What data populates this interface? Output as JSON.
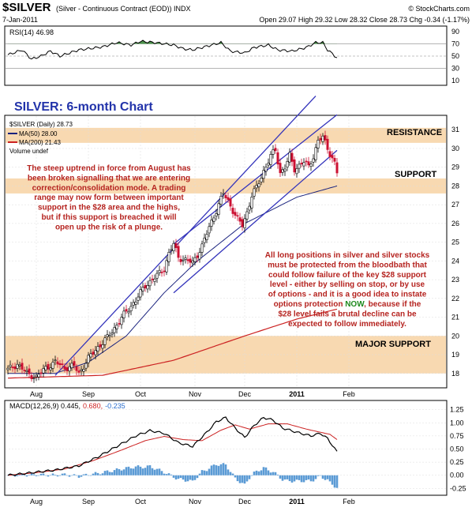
{
  "header": {
    "title": "$SILVER",
    "subtitle": "(Silver - Continuous Contract (EOD)) INDX",
    "brand": "© StockCharts.com",
    "date": "7-Jan-2011",
    "quote": "Open 29.07  High 29.32  Low 28.32  Close 28.73  Chg -0.34 (-1.17%)"
  },
  "rsi": {
    "label": "RSI(14) 46.98",
    "ticks": [
      "90",
      "70",
      "50",
      "30",
      "10"
    ]
  },
  "price": {
    "chart_title": "SILVER: 6-month Chart",
    "legend_main": "$SILVER (Daily) 28.73",
    "legend_ma50": "MA(50) 28.00",
    "legend_ma200": "MA(200) 21.43",
    "legend_vol": "Volume undef",
    "ticks": [
      "31",
      "30",
      "29",
      "28",
      "27",
      "26",
      "25",
      "24",
      "23",
      "22",
      "21",
      "20",
      "19",
      "18"
    ],
    "resistance_label": "RESISTANCE",
    "support_label": "SUPPORT",
    "major_support_label": "MAJOR SUPPORT",
    "note1": [
      "The steep uptrend in force from August has",
      "been broken signalling that we are entering",
      "correction/consolidation mode. A trading",
      "range may now form between important",
      "support in the $28 area and the highs,",
      "but if this support is breached it will",
      "open up the risk of a plunge."
    ],
    "note2_lines": [
      "All long positions in silver and silver stocks",
      "must be protected from the bloodbath that",
      "could follow failure of the key $28 support",
      "level - either by selling on stop, or by use",
      "of options - and it is a good idea to instate"
    ],
    "note2_pre": "options protection ",
    "note2_now": "NOW",
    "note2_post": ", because if the",
    "note2_tail": [
      "$28 level fails a brutal decline can be",
      "expected to follow immediately."
    ]
  },
  "months": [
    "Aug",
    "Sep",
    "Oct",
    "Nov",
    "Dec",
    "2011",
    "Feb"
  ],
  "macd": {
    "label_a": "MACD(12,26,9) 0.445,",
    "label_b": "0.680,",
    "label_c": "-0.235",
    "ticks": [
      "1.25",
      "1.00",
      "0.75",
      "0.50",
      "0.25",
      "0.00",
      "-0.25"
    ]
  },
  "colors": {
    "green_fill": "#3a8a3a",
    "ma50": "#1a237e",
    "ma200": "#cc2222",
    "channel": "#3333bb",
    "zone": "#f7d2a3",
    "up_candle": "#000000",
    "down_candle": "#cc1133",
    "hist": "#5b9bd5"
  },
  "chart_data": {
    "type": "candlestick",
    "title": "SILVER: 6-month Chart",
    "ylim": [
      17.4,
      31.6
    ],
    "rsi_ylim": [
      5,
      95
    ],
    "macd_ylim": [
      -0.35,
      1.35
    ],
    "n_days": 160,
    "month_ticks": [
      {
        "label": "Aug",
        "day": 12
      },
      {
        "label": "Sep",
        "day": 34
      },
      {
        "label": "Oct",
        "day": 56
      },
      {
        "label": "Nov",
        "day": 79
      },
      {
        "label": "Dec",
        "day": 100
      },
      {
        "label": "2011",
        "day": 122
      },
      {
        "label": "Feb",
        "day": 144
      }
    ],
    "close_anchors": [
      [
        0,
        18.2
      ],
      [
        4,
        18.5
      ],
      [
        8,
        18.0
      ],
      [
        12,
        17.8
      ],
      [
        16,
        18.3
      ],
      [
        20,
        18.6
      ],
      [
        24,
        18.3
      ],
      [
        28,
        18.4
      ],
      [
        30,
        18.0
      ],
      [
        34,
        18.8
      ],
      [
        38,
        19.4
      ],
      [
        42,
        19.9
      ],
      [
        46,
        20.6
      ],
      [
        50,
        21.3
      ],
      [
        54,
        21.9
      ],
      [
        58,
        22.7
      ],
      [
        62,
        23.1
      ],
      [
        66,
        23.6
      ],
      [
        68,
        24.4
      ],
      [
        70,
        24.9
      ],
      [
        72,
        24.2
      ],
      [
        76,
        24.0
      ],
      [
        78,
        23.9
      ],
      [
        82,
        24.8
      ],
      [
        85,
        25.8
      ],
      [
        88,
        26.7
      ],
      [
        91,
        27.6
      ],
      [
        93,
        27.2
      ],
      [
        95,
        26.7
      ],
      [
        97,
        26.2
      ],
      [
        99,
        25.9
      ],
      [
        101,
        26.6
      ],
      [
        103,
        27.5
      ],
      [
        105,
        27.9
      ],
      [
        108,
        28.8
      ],
      [
        111,
        29.6
      ],
      [
        113,
        29.9
      ],
      [
        115,
        28.7
      ],
      [
        117,
        29.0
      ],
      [
        119,
        29.6
      ],
      [
        121,
        28.9
      ],
      [
        123,
        29.1
      ],
      [
        125,
        29.3
      ],
      [
        127,
        29.0
      ],
      [
        129,
        29.6
      ],
      [
        131,
        30.4
      ],
      [
        133,
        30.6
      ],
      [
        135,
        30.0
      ],
      [
        137,
        29.5
      ],
      [
        138,
        29.2
      ],
      [
        139,
        28.7
      ]
    ],
    "ma50_anchors": [
      [
        0,
        18.0
      ],
      [
        20,
        18.0
      ],
      [
        34,
        18.6
      ],
      [
        50,
        20.0
      ],
      [
        66,
        22.3
      ],
      [
        80,
        24.0
      ],
      [
        100,
        26.0
      ],
      [
        122,
        27.4
      ],
      [
        139,
        28.0
      ]
    ],
    "ma200_anchors": [
      [
        0,
        17.75
      ],
      [
        40,
        17.9
      ],
      [
        70,
        18.7
      ],
      [
        100,
        20.0
      ],
      [
        122,
        20.9
      ],
      [
        139,
        21.43
      ]
    ],
    "rsi_anchors": [
      [
        0,
        52
      ],
      [
        6,
        60
      ],
      [
        10,
        45
      ],
      [
        14,
        50
      ],
      [
        18,
        58
      ],
      [
        22,
        50
      ],
      [
        30,
        60
      ],
      [
        40,
        65
      ],
      [
        46,
        72
      ],
      [
        52,
        68
      ],
      [
        56,
        74
      ],
      [
        62,
        72
      ],
      [
        66,
        70
      ],
      [
        70,
        68
      ],
      [
        74,
        62
      ],
      [
        78,
        60
      ],
      [
        84,
        66
      ],
      [
        90,
        72
      ],
      [
        94,
        58
      ],
      [
        100,
        55
      ],
      [
        104,
        64
      ],
      [
        110,
        68
      ],
      [
        114,
        60
      ],
      [
        120,
        58
      ],
      [
        126,
        64
      ],
      [
        130,
        72
      ],
      [
        133,
        72
      ],
      [
        135,
        60
      ],
      [
        137,
        54
      ],
      [
        139,
        47
      ]
    ],
    "macd_anchors": [
      [
        0,
        0.0
      ],
      [
        10,
        0.05
      ],
      [
        20,
        0.1
      ],
      [
        30,
        0.18
      ],
      [
        38,
        0.35
      ],
      [
        46,
        0.55
      ],
      [
        54,
        0.75
      ],
      [
        60,
        0.85
      ],
      [
        66,
        0.8
      ],
      [
        72,
        0.62
      ],
      [
        78,
        0.55
      ],
      [
        84,
        0.82
      ],
      [
        88,
        1.02
      ],
      [
        92,
        1.1
      ],
      [
        96,
        0.9
      ],
      [
        100,
        0.72
      ],
      [
        104,
        0.95
      ],
      [
        108,
        1.1
      ],
      [
        112,
        1.05
      ],
      [
        116,
        0.9
      ],
      [
        122,
        0.82
      ],
      [
        128,
        0.75
      ],
      [
        132,
        0.8
      ],
      [
        135,
        0.7
      ],
      [
        139,
        0.445
      ]
    ],
    "signal_anchors": [
      [
        0,
        0.0
      ],
      [
        12,
        0.05
      ],
      [
        24,
        0.12
      ],
      [
        36,
        0.28
      ],
      [
        48,
        0.48
      ],
      [
        58,
        0.66
      ],
      [
        66,
        0.74
      ],
      [
        74,
        0.68
      ],
      [
        82,
        0.66
      ],
      [
        90,
        0.86
      ],
      [
        96,
        0.96
      ],
      [
        102,
        0.88
      ],
      [
        110,
        0.98
      ],
      [
        118,
        0.98
      ],
      [
        126,
        0.88
      ],
      [
        132,
        0.82
      ],
      [
        136,
        0.78
      ],
      [
        139,
        0.68
      ]
    ],
    "zones": [
      {
        "name": "RESISTANCE",
        "from": 30.3,
        "to": 31.1
      },
      {
        "name": "SUPPORT",
        "from": 27.6,
        "to": 28.4
      },
      {
        "name": "MAJOR SUPPORT",
        "from": 18.0,
        "to": 20.0
      }
    ],
    "channel": [
      {
        "from": [
          20,
          17.9
        ],
        "to": [
          130,
          32.8
        ]
      },
      {
        "from": [
          70,
          24.9
        ],
        "to": [
          139,
          31.8
        ]
      },
      {
        "from": [
          70,
          22.3
        ],
        "to": [
          139,
          29.9
        ]
      }
    ]
  }
}
